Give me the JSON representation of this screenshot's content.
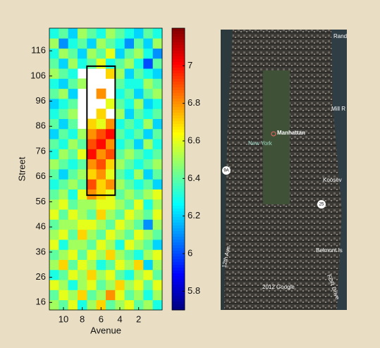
{
  "chart_data": {
    "type": "heatmap",
    "x_label": "Avenue",
    "y_label": "Street",
    "x": [
      11,
      10,
      9,
      8,
      7,
      6,
      5,
      4,
      3,
      2,
      1,
      0
    ],
    "y": [
      15,
      19,
      23,
      27,
      31,
      35,
      39,
      43,
      47,
      51,
      55,
      59,
      63,
      67,
      71,
      75,
      79,
      83,
      87,
      91,
      95,
      99,
      103,
      107,
      111,
      115,
      119,
      123
    ],
    "z": [
      [
        6.5,
        6.4,
        6.6,
        6.3,
        6.5,
        6.7,
        6.4,
        6.5,
        6.6,
        6.4,
        6.5,
        6.3
      ],
      [
        6.4,
        6.6,
        6.5,
        6.7,
        6.4,
        6.5,
        6.8,
        6.6,
        6.4,
        6.5,
        6.3,
        6.5
      ],
      [
        6.6,
        6.5,
        6.3,
        6.5,
        6.6,
        6.4,
        6.5,
        6.7,
        6.5,
        6.6,
        6.4,
        6.6
      ],
      [
        6.3,
        6.4,
        6.6,
        6.5,
        6.7,
        6.5,
        6.6,
        6.4,
        6.3,
        6.5,
        6.6,
        6.4
      ],
      [
        6.5,
        6.7,
        6.4,
        6.6,
        6.5,
        6.3,
        6.4,
        6.6,
        6.5,
        6.7,
        6.2,
        6.5
      ],
      [
        6.4,
        6.5,
        6.6,
        6.4,
        6.6,
        6.5,
        6.7,
        6.5,
        6.4,
        6.3,
        6.5,
        6.6
      ],
      [
        6.6,
        6.3,
        6.5,
        6.5,
        6.4,
        6.6,
        6.5,
        6.3,
        6.6,
        6.5,
        6.4,
        6.2
      ],
      [
        6.5,
        6.6,
        6.4,
        6.7,
        6.5,
        6.4,
        6.6,
        6.5,
        6.4,
        6.6,
        6.5,
        6.4
      ],
      [
        6.4,
        6.5,
        6.5,
        6.6,
        6.6,
        6.5,
        6.4,
        6.6,
        6.5,
        6.4,
        6.1,
        6.5
      ],
      [
        6.6,
        6.4,
        6.6,
        6.5,
        6.4,
        6.7,
        6.5,
        6.4,
        6.6,
        6.5,
        6.4,
        6.6
      ],
      [
        6.5,
        6.6,
        6.4,
        6.5,
        6.5,
        6.6,
        6.6,
        6.5,
        6.4,
        6.6,
        6.3,
        6.5
      ],
      [
        6.4,
        6.5,
        6.3,
        6.6,
        6.8,
        6.7,
        6.6,
        6.4,
        6.5,
        6.4,
        6.5,
        6.6
      ],
      [
        6.3,
        6.4,
        6.5,
        6.4,
        6.9,
        6.7,
        6.8,
        6.5,
        6.4,
        6.3,
        6.4,
        6.2
      ],
      [
        6.4,
        6.2,
        6.4,
        6.5,
        6.7,
        6.8,
        6.6,
        6.4,
        6.3,
        6.5,
        6.2,
        6.4
      ],
      [
        6.5,
        6.4,
        6.3,
        6.4,
        6.8,
        6.9,
        6.7,
        6.5,
        6.4,
        6.3,
        6.4,
        6.5
      ],
      [
        6.3,
        6.5,
        6.4,
        6.6,
        7.0,
        6.8,
        6.9,
        6.4,
        6.5,
        6.4,
        6.3,
        6.4
      ],
      [
        6.4,
        6.3,
        6.5,
        6.4,
        6.9,
        7.0,
        6.8,
        6.3,
        6.4,
        6.2,
        6.5,
        6.3
      ],
      [
        6.2,
        6.4,
        6.3,
        6.5,
        6.8,
        6.9,
        7.0,
        6.4,
        6.3,
        6.4,
        6.2,
        6.4
      ],
      [
        6.4,
        6.2,
        6.4,
        null,
        6.7,
        6.6,
        6.8,
        6.3,
        6.4,
        6.3,
        6.5,
        6.2
      ],
      [
        6.3,
        6.4,
        6.5,
        null,
        null,
        6.7,
        null,
        6.5,
        6.2,
        6.4,
        6.3,
        6.4
      ],
      [
        6.2,
        6.3,
        6.4,
        null,
        null,
        null,
        6.6,
        6.4,
        6.3,
        6.5,
        6.2,
        6.3
      ],
      [
        6.4,
        6.5,
        6.2,
        null,
        null,
        6.8,
        null,
        6.3,
        6.4,
        6.2,
        6.4,
        6.5
      ],
      [
        6.3,
        6.2,
        6.4,
        6.5,
        null,
        null,
        null,
        6.4,
        6.3,
        6.3,
        6.5,
        6.4
      ],
      [
        6.5,
        6.4,
        6.3,
        null,
        null,
        null,
        6.7,
        6.5,
        6.2,
        6.4,
        6.3,
        6.2
      ],
      [
        6.4,
        6.2,
        6.5,
        6.3,
        6.4,
        6.6,
        6.3,
        6.4,
        6.5,
        6.3,
        6.0,
        6.4
      ],
      [
        6.3,
        6.5,
        6.4,
        6.2,
        6.5,
        6.4,
        6.6,
        6.2,
        6.4,
        6.5,
        6.3,
        6.1
      ],
      [
        6.5,
        6.1,
        6.3,
        6.4,
        6.2,
        6.5,
        6.4,
        6.3,
        6.1,
        6.4,
        6.2,
        6.5
      ],
      [
        6.3,
        6.4,
        6.2,
        6.5,
        6.4,
        6.3,
        6.5,
        6.4,
        6.3,
        6.2,
        6.4,
        6.3
      ]
    ],
    "xlim": [
      11.5,
      -0.5
    ],
    "ylim": [
      13,
      125
    ],
    "xticks": [
      10,
      8,
      6,
      4,
      2
    ],
    "yticks": [
      16,
      26,
      36,
      46,
      56,
      66,
      76,
      86,
      96,
      106,
      116
    ],
    "clim": [
      5.7,
      7.2
    ],
    "colormap": "jet",
    "cticks": [
      5.8,
      6,
      6.2,
      6.4,
      6.6,
      6.8,
      7
    ],
    "highlight": {
      "x": [
        7.5,
        4.5
      ],
      "y": [
        58.6,
        109.9
      ]
    }
  },
  "map": {
    "labels": [
      "Rand",
      "Mill R",
      "Manhattan",
      "New York",
      "Koosev",
      "9A",
      "25",
      "12th Ave",
      "Belmont Is",
      "2012 Google",
      "FDR Drive"
    ]
  }
}
